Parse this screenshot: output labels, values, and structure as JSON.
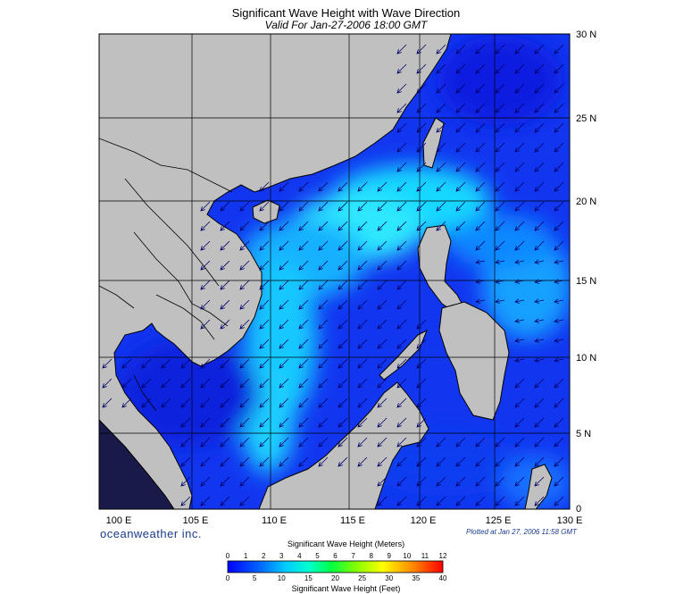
{
  "header": {
    "title": "Significant Wave Height with Wave Direction",
    "subtitle": "Valid For Jan-27-2006 18:00 GMT"
  },
  "map": {
    "lon_range": [
      100,
      130
    ],
    "lat_range": [
      0,
      30
    ],
    "lon_ticks": [
      "100 E",
      "105 E",
      "110 E",
      "115 E",
      "120 E",
      "125 E",
      "130 E"
    ],
    "lat_ticks": [
      "30 N",
      "25 N",
      "20 N",
      "15 N",
      "10 N",
      "5 N",
      "0"
    ],
    "land_color": "#c0c0c0",
    "water_base_color": "#1133ee",
    "arrow_color": "#000066",
    "dominant_wave_direction": "toward southwest"
  },
  "footer": {
    "brand": "oceanweather inc.",
    "plotted": "Plotted at Jan 27, 2006 11:58 GMT"
  },
  "colorbar": {
    "meters_title": "Significant Wave Height (Meters)",
    "feet_title": "Significant Wave Height (Feet)",
    "meters_ticks": [
      "0",
      "1",
      "2",
      "3",
      "4",
      "5",
      "6",
      "7",
      "8",
      "9",
      "10",
      "11",
      "12"
    ],
    "feet_ticks": [
      "0",
      "5",
      "10",
      "15",
      "20",
      "25",
      "30",
      "35",
      "40"
    ],
    "colors": [
      "#0000ff",
      "#0055ff",
      "#00aaff",
      "#00ffff",
      "#00ffaa",
      "#00ff00",
      "#aaff00",
      "#ffff00",
      "#ffaa00",
      "#ff5500",
      "#ff0000"
    ]
  }
}
